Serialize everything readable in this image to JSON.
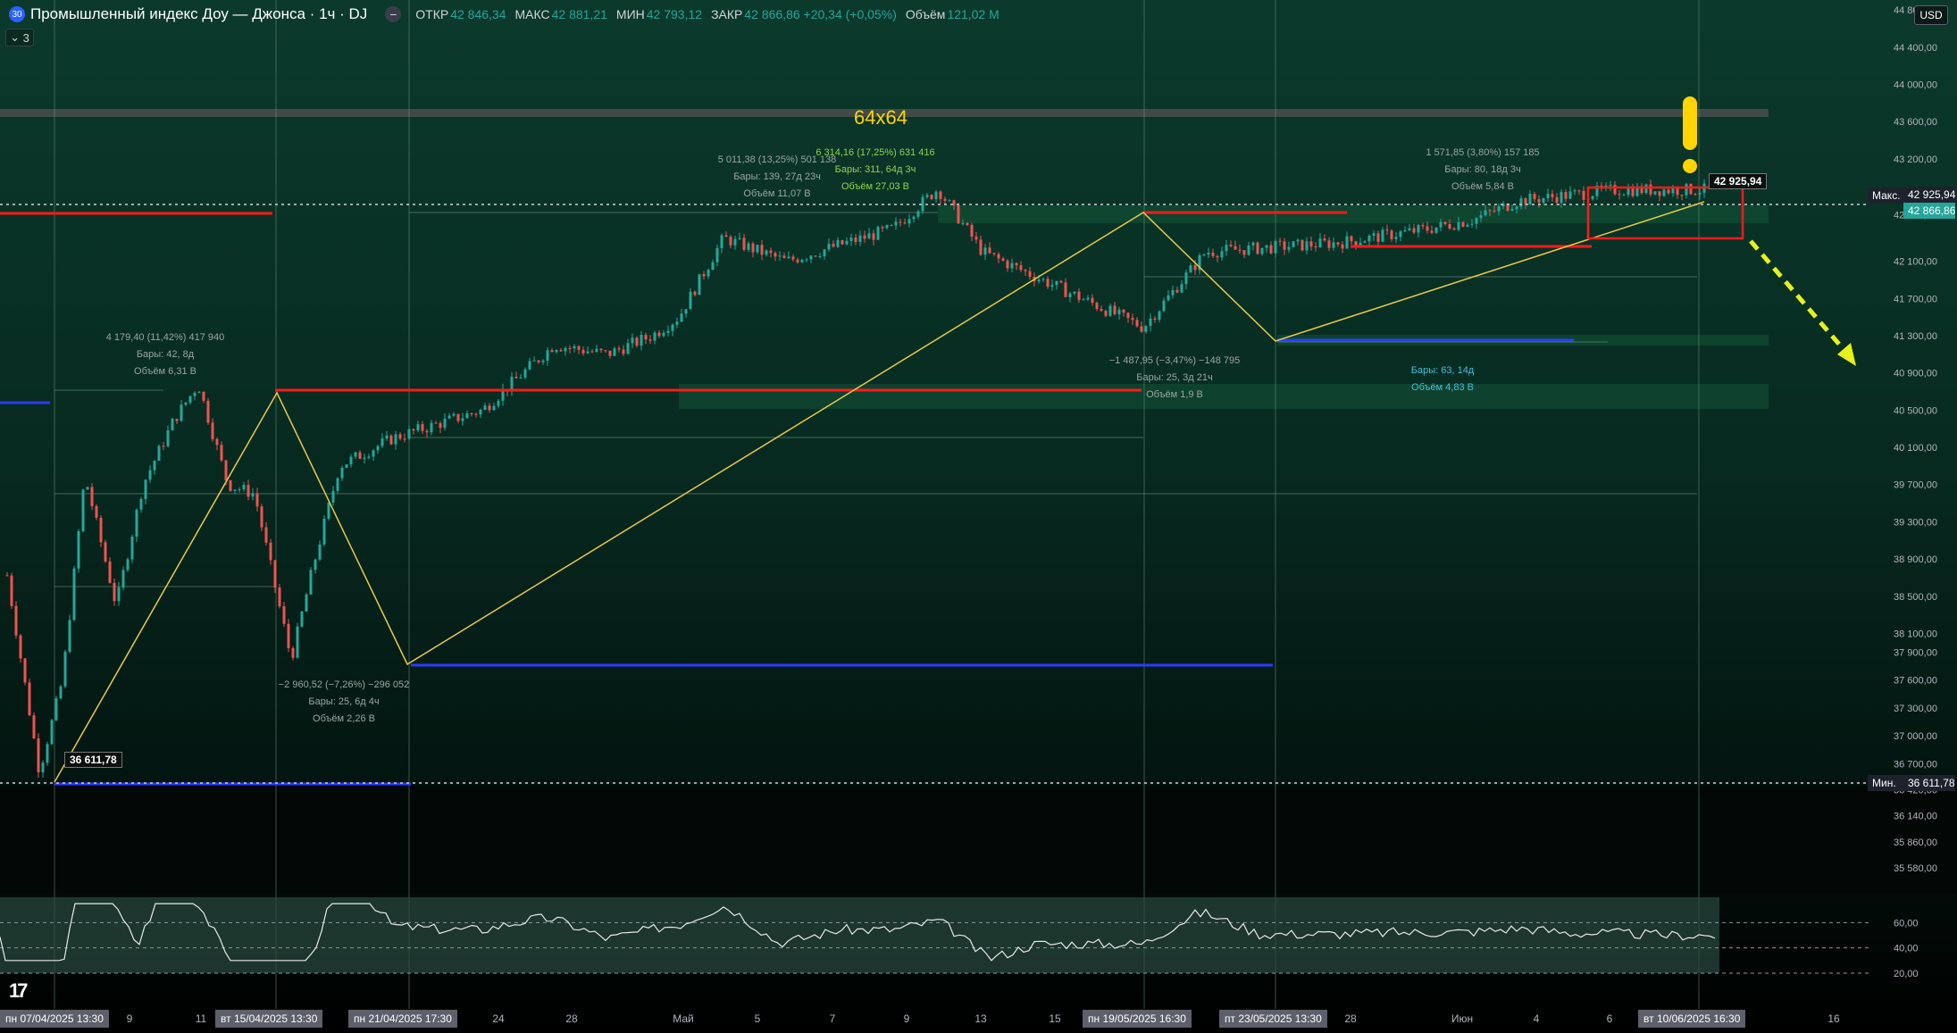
{
  "header": {
    "logo_text": "30",
    "title": "Промышленный индекс Доу — Джонса · 1ч · DJ",
    "collapse_glyph": "−",
    "ohlc": [
      {
        "k": "ОТКР",
        "v": "42 846,34"
      },
      {
        "k": "МАКС",
        "v": "42 881,21"
      },
      {
        "k": "МИН",
        "v": "42 793,12"
      },
      {
        "k": "ЗАКР",
        "v": "42 866,86 +20,34 (+0,05%)"
      },
      {
        "k": "Объём",
        "v": "121,02 M"
      }
    ],
    "indicator_count": "3",
    "currency": "USD"
  },
  "colors": {
    "bg_top": "#0b3a2c",
    "bull": "#26a69a",
    "bear": "#ef5350",
    "red_level": "#ff1a1a",
    "blue_level": "#2a3cff",
    "trend_line": "#e8c94a",
    "accent_yellow": "#ffd400",
    "arrow": "#e6f21a"
  },
  "chart_data": {
    "type": "line",
    "title": "Промышленный индекс Доу — Джонса · 1ч · DJ",
    "ylim": [
      35580,
      44800
    ],
    "price_ticks": [
      "44 800,00",
      "44 400,00",
      "44 000,00",
      "43 600,00",
      "43 200,00",
      "42 600,00",
      "42 100,00",
      "41 700,00",
      "41 300,00",
      "40 900,00",
      "40 500,00",
      "40 100,00",
      "39 700,00",
      "39 300,00",
      "38 900,00",
      "38 500,00",
      "38 100,00",
      "37 900,00",
      "37 600,00",
      "37 300,00",
      "37 000,00",
      "36 700,00",
      "36 420,00",
      "36 140,00",
      "35 860,00",
      "35 580,00"
    ],
    "price_tick_values": [
      44800,
      44400,
      44000,
      43600,
      43200,
      42600,
      42100,
      41700,
      41300,
      40900,
      40500,
      40100,
      39700,
      39300,
      38900,
      38500,
      38100,
      37900,
      37600,
      37300,
      37000,
      36700,
      36420,
      36140,
      35860,
      35580
    ],
    "x_ticks": [
      "9",
      "11",
      "24",
      "28",
      "Май",
      "5",
      "7",
      "9",
      "13",
      "15",
      "28",
      "Июн",
      "4",
      "6",
      "16"
    ],
    "date_tags": [
      "пн 07/04/2025   13:30",
      "вт 15/04/2025   13:30",
      "пн 21/04/2025   17:30",
      "пн 19/05/2025   16:30",
      "пт 23/05/2025   13:30",
      "вт 10/06/2025   16:30"
    ],
    "price_path": [
      {
        "t": "2025-04-04",
        "y": 38900
      },
      {
        "t": "2025-04-07",
        "y": 36612
      },
      {
        "t": "2025-04-08",
        "y": 37600
      },
      {
        "t": "2025-04-09",
        "y": 39800
      },
      {
        "t": "2025-04-10",
        "y": 38400
      },
      {
        "t": "2025-04-11",
        "y": 39700
      },
      {
        "t": "2025-04-14",
        "y": 40400
      },
      {
        "t": "2025-04-15",
        "y": 40780
      },
      {
        "t": "2025-04-16",
        "y": 39700
      },
      {
        "t": "2025-04-17",
        "y": 39600
      },
      {
        "t": "2025-04-21",
        "y": 37820
      },
      {
        "t": "2025-04-22",
        "y": 38800
      },
      {
        "t": "2025-04-23",
        "y": 39900
      },
      {
        "t": "2025-04-25",
        "y": 40200
      },
      {
        "t": "2025-04-29",
        "y": 40500
      },
      {
        "t": "2025-05-02",
        "y": 41200
      },
      {
        "t": "2025-05-05",
        "y": 41100
      },
      {
        "t": "2025-05-07",
        "y": 41300
      },
      {
        "t": "2025-05-08",
        "y": 41500
      },
      {
        "t": "2025-05-12",
        "y": 42350
      },
      {
        "t": "2025-05-14",
        "y": 42100
      },
      {
        "t": "2025-05-16",
        "y": 42450
      },
      {
        "t": "2025-05-19",
        "y": 42880
      },
      {
        "t": "2025-05-21",
        "y": 42200
      },
      {
        "t": "2025-05-23",
        "y": 41390
      },
      {
        "t": "2025-05-27",
        "y": 42200
      },
      {
        "t": "2025-05-30",
        "y": 42300
      },
      {
        "t": "2025-06-03",
        "y": 42450
      },
      {
        "t": "2025-06-05",
        "y": 42550
      },
      {
        "t": "2025-06-06",
        "y": 42750
      },
      {
        "t": "2025-06-10",
        "y": 42867
      }
    ],
    "marks": {
      "max_label": "Макс.",
      "max_value": "42 925,94",
      "last_value": "42 866,86",
      "min_label": "Мин.",
      "min_value": "36 611,78",
      "high_tag": "42 925,94",
      "low_tag": "36 611,78"
    },
    "watermark": "64x64",
    "annotations": [
      {
        "lines": [
          "4 179,40 (11,42%) 417 940",
          "Бары: 42, 8д",
          "Объём 6,31 B"
        ]
      },
      {
        "lines": [
          "−2 960,52 (−7,26%) −296 052",
          "Бары: 25, 6д 4ч",
          "Объём 2,26 B"
        ]
      },
      {
        "lines": [
          "5 011,38 (13,25%) 501 138",
          "Бары: 139, 27д 23ч",
          "Объём 11,07 B"
        ]
      },
      {
        "lines": [
          "6 314,16 (17,25%) 631 416",
          "Бары: 311, 64д 3ч",
          "Объём 27,03 B"
        ]
      },
      {
        "lines": [
          "−1 487,95 (−3,47%) −148 795",
          "Бары: 25, 3д 21ч",
          "Объём 1,9 B"
        ]
      },
      {
        "lines": [
          "1 571,85 (3,80%) 157 185",
          "Бары: 80, 18д 3ч",
          "Объём 5,84 B"
        ]
      },
      {
        "lines": [
          "Бары: 63, 14д",
          "Объём 4,83 B"
        ]
      }
    ],
    "rsi": {
      "levels": [
        "60,00",
        "40,00",
        "20,00"
      ],
      "level_values": [
        60,
        40,
        20
      ]
    }
  }
}
